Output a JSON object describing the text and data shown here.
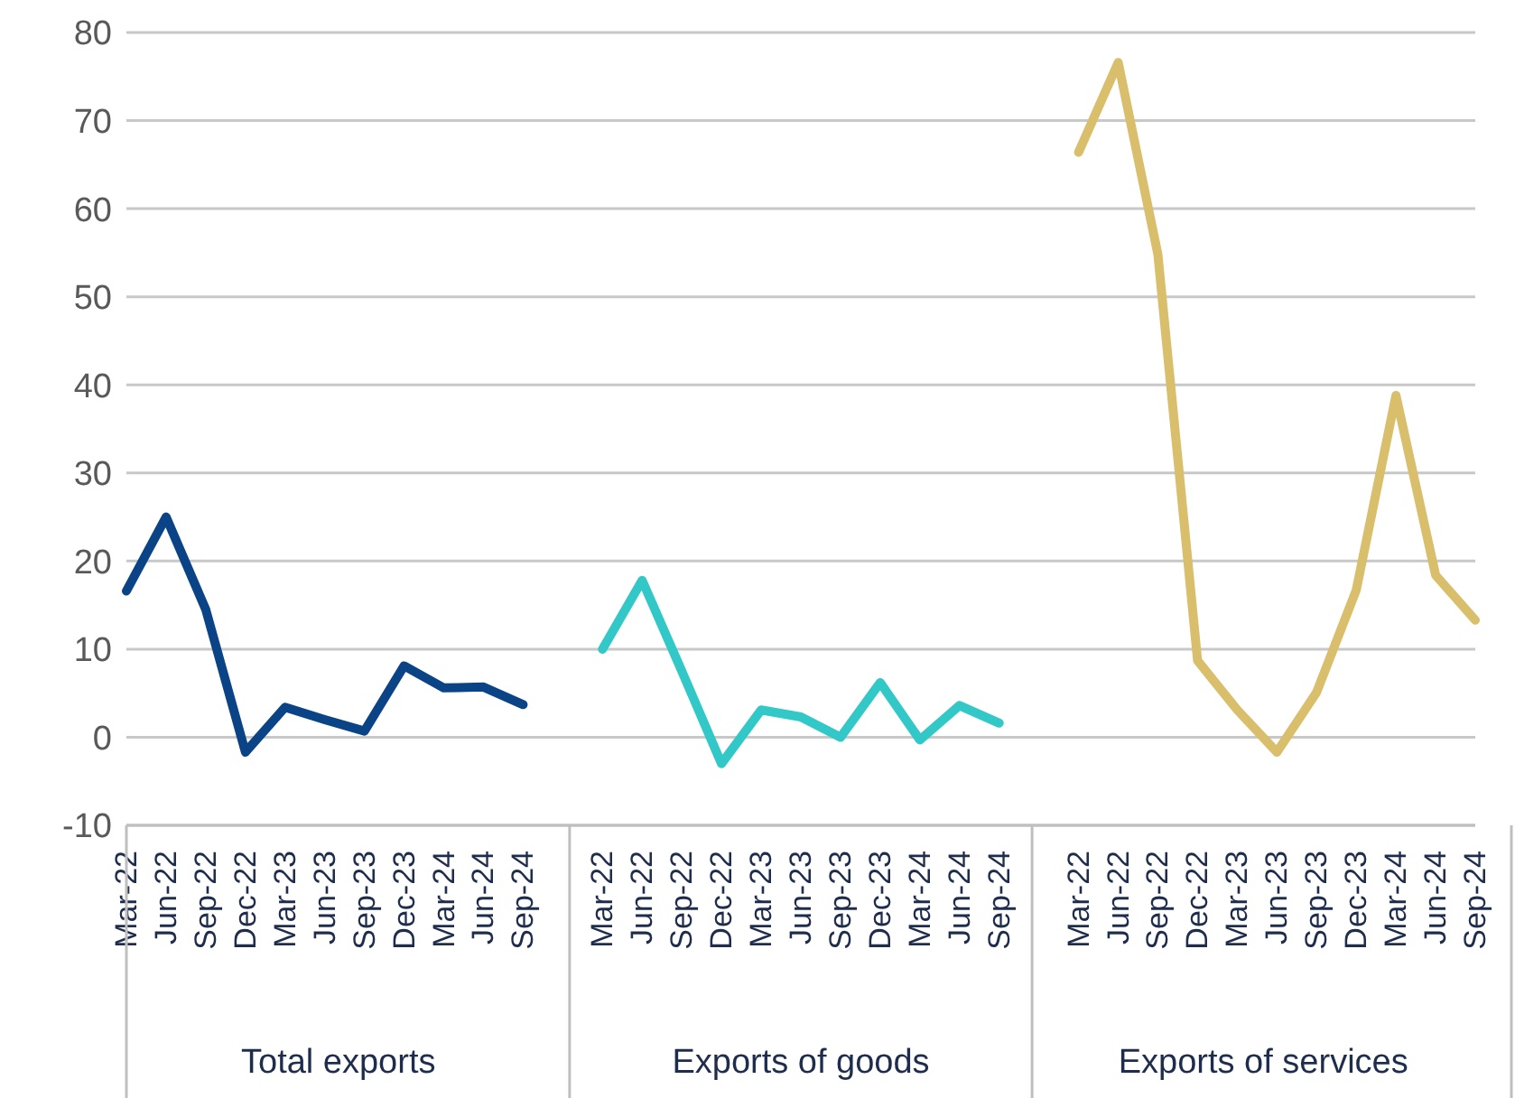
{
  "chart_data": {
    "type": "line",
    "categories": [
      "Mar-22",
      "Jun-22",
      "Sep-22",
      "Dec-22",
      "Mar-23",
      "Jun-23",
      "Sep-23",
      "Dec-23",
      "Mar-24",
      "Jun-24",
      "Sep-24",
      null,
      "Mar-22",
      "Jun-22",
      "Sep-22",
      "Dec-22",
      "Mar-23",
      "Jun-23",
      "Sep-23",
      "Dec-23",
      "Mar-24",
      "Jun-24",
      "Sep-24",
      null,
      "Mar-22",
      "Jun-22",
      "Sep-22",
      "Dec-22",
      "Mar-23",
      "Jun-23",
      "Sep-23",
      "Dec-23",
      "Mar-24",
      "Jun-24",
      "Sep-24"
    ],
    "series": [
      {
        "color": "#0b4486",
        "values": [
          16.6,
          25.0,
          14.5,
          -1.7,
          3.4,
          2.0,
          0.7,
          8.1,
          5.6,
          5.7,
          3.7,
          null,
          null,
          null,
          null,
          null,
          null,
          null,
          null,
          null,
          null,
          null,
          null,
          null,
          null,
          null,
          null,
          null,
          null,
          null,
          null,
          null,
          null,
          null,
          null
        ]
      },
      {
        "color": "#33c8c8",
        "values": [
          null,
          null,
          null,
          null,
          null,
          null,
          null,
          null,
          null,
          null,
          null,
          null,
          10.0,
          17.8,
          7.5,
          -3.0,
          3.1,
          2.3,
          0.0,
          6.2,
          -0.3,
          3.6,
          1.6,
          null,
          null,
          null,
          null,
          null,
          null,
          null,
          null,
          null,
          null,
          null,
          null
        ]
      },
      {
        "color": "#d9be6c",
        "values": [
          null,
          null,
          null,
          null,
          null,
          null,
          null,
          null,
          null,
          null,
          null,
          null,
          null,
          null,
          null,
          null,
          null,
          null,
          null,
          null,
          null,
          null,
          null,
          null,
          66.4,
          76.6,
          54.8,
          8.7,
          3.1,
          -1.7,
          5.1,
          16.7,
          38.8,
          18.4,
          13.3
        ]
      }
    ],
    "annotations": [
      "Total exports",
      "Exports of goods",
      "Exports of services"
    ],
    "ylim": [
      -10,
      80
    ],
    "yticks": [
      -10,
      0,
      10,
      20,
      30,
      40,
      50,
      60,
      70,
      80
    ],
    "grid": "y",
    "marker": "none",
    "line_style": "solid"
  }
}
